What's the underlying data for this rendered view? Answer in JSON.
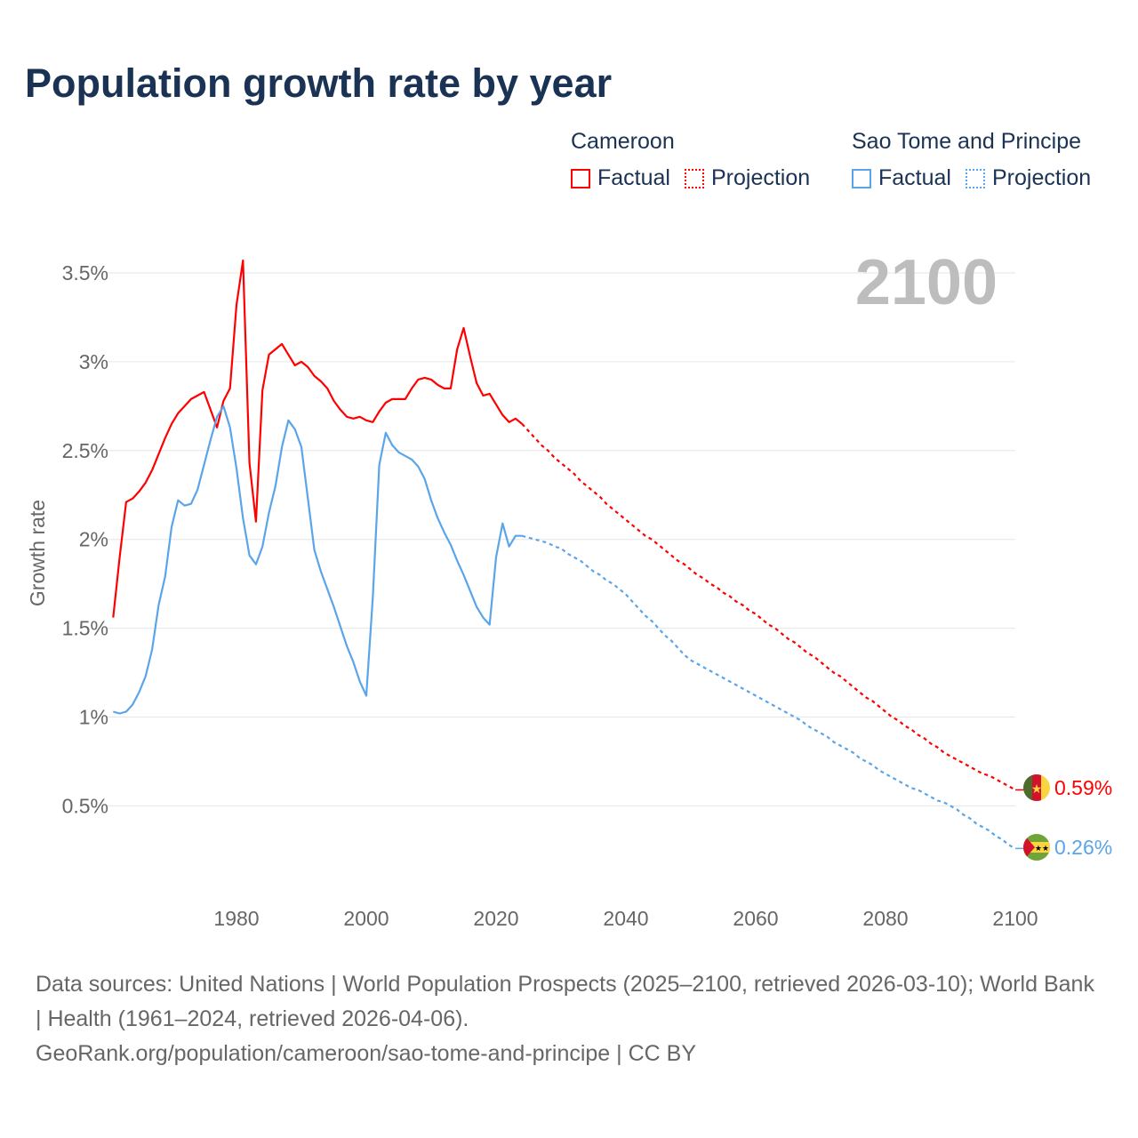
{
  "title": "Population growth rate by year",
  "legend": [
    {
      "country": "Cameroon",
      "factual": "Factual",
      "projection": "Projection",
      "color": "#ff0000"
    },
    {
      "country": "Sao Tome and Principe",
      "factual": "Factual",
      "projection": "Projection",
      "color": "#5aa5ea"
    }
  ],
  "year_display": "2100",
  "footer": {
    "sources": "Data sources: United Nations | World Population Prospects (2025–2100, retrieved 2026-03-10); World Bank | Health (1961–2024, retrieved 2026-04-06).",
    "credit": "GeoRank.org/population/cameroon/sao-tome-and-principe | CC BY"
  },
  "chart_data": {
    "type": "line",
    "title": "Population growth rate by year",
    "xlabel": "",
    "ylabel": "Growth rate",
    "xlim": [
      1961,
      2100
    ],
    "ylim": [
      0.1,
      3.8
    ],
    "xticks": [
      1980,
      2000,
      2020,
      2040,
      2060,
      2080,
      2100
    ],
    "yticks": [
      0.5,
      1,
      1.5,
      2,
      2.5,
      3,
      3.5
    ],
    "ytick_labels": [
      "0.5%",
      "1%",
      "1.5%",
      "2%",
      "2.5%",
      "3%",
      "3.5%"
    ],
    "grid": true,
    "legend_position": "top-right",
    "series": [
      {
        "name": "Cameroon",
        "color": "#ff0000",
        "end_label": "0.59%",
        "factual_start": 1961,
        "factual": [
          1.56,
          1.9,
          2.21,
          2.23,
          2.27,
          2.32,
          2.39,
          2.48,
          2.57,
          2.65,
          2.71,
          2.75,
          2.79,
          2.81,
          2.83,
          2.73,
          2.63,
          2.78,
          2.85,
          3.32,
          3.57,
          2.43,
          2.1,
          2.84,
          3.04,
          3.07,
          3.1,
          3.04,
          2.98,
          3.0,
          2.97,
          2.92,
          2.89,
          2.85,
          2.78,
          2.73,
          2.69,
          2.68,
          2.69,
          2.67,
          2.66,
          2.72,
          2.77,
          2.79,
          2.79,
          2.79,
          2.85,
          2.9,
          2.91,
          2.9,
          2.87,
          2.85,
          2.85,
          3.07,
          3.19,
          3.03,
          2.88,
          2.81,
          2.82,
          2.76,
          2.7,
          2.66,
          2.68,
          2.65
        ],
        "projection_start": 2025,
        "projection": [
          2.61,
          2.57,
          2.53,
          2.5,
          2.46,
          2.43,
          2.4,
          2.37,
          2.33,
          2.3,
          2.27,
          2.24,
          2.2,
          2.17,
          2.14,
          2.11,
          2.08,
          2.05,
          2.02,
          2.0,
          1.97,
          1.94,
          1.91,
          1.88,
          1.86,
          1.83,
          1.8,
          1.78,
          1.75,
          1.73,
          1.7,
          1.68,
          1.65,
          1.63,
          1.6,
          1.58,
          1.55,
          1.52,
          1.5,
          1.47,
          1.44,
          1.42,
          1.39,
          1.36,
          1.34,
          1.31,
          1.28,
          1.25,
          1.23,
          1.2,
          1.17,
          1.14,
          1.11,
          1.09,
          1.06,
          1.03,
          1.0,
          0.98,
          0.95,
          0.93,
          0.9,
          0.88,
          0.85,
          0.83,
          0.8,
          0.78,
          0.76,
          0.74,
          0.72,
          0.7,
          0.68,
          0.67,
          0.65,
          0.63,
          0.61,
          0.59
        ]
      },
      {
        "name": "Sao Tome and Principe",
        "color": "#5aa5ea",
        "end_label": "0.26%",
        "factual_start": 1961,
        "factual": [
          1.03,
          1.02,
          1.03,
          1.07,
          1.14,
          1.23,
          1.38,
          1.63,
          1.79,
          2.07,
          2.22,
          2.19,
          2.2,
          2.28,
          2.42,
          2.56,
          2.69,
          2.75,
          2.63,
          2.4,
          2.12,
          1.91,
          1.86,
          1.96,
          2.15,
          2.3,
          2.52,
          2.67,
          2.62,
          2.52,
          2.23,
          1.94,
          1.82,
          1.72,
          1.62,
          1.51,
          1.4,
          1.31,
          1.2,
          1.12,
          1.67,
          2.42,
          2.6,
          2.53,
          2.49,
          2.47,
          2.45,
          2.41,
          2.34,
          2.22,
          2.12,
          2.04,
          1.97,
          1.88,
          1.8,
          1.71,
          1.62,
          1.56,
          1.52,
          1.9,
          2.09,
          1.96,
          2.02,
          2.02
        ],
        "projection_start": 2025,
        "projection": [
          2.01,
          2.0,
          1.99,
          1.98,
          1.96,
          1.95,
          1.92,
          1.9,
          1.88,
          1.85,
          1.82,
          1.8,
          1.77,
          1.75,
          1.72,
          1.69,
          1.65,
          1.61,
          1.57,
          1.54,
          1.5,
          1.46,
          1.43,
          1.39,
          1.35,
          1.32,
          1.3,
          1.28,
          1.26,
          1.24,
          1.22,
          1.2,
          1.18,
          1.16,
          1.14,
          1.12,
          1.1,
          1.08,
          1.06,
          1.04,
          1.02,
          1.0,
          0.98,
          0.95,
          0.93,
          0.91,
          0.89,
          0.86,
          0.84,
          0.82,
          0.8,
          0.77,
          0.75,
          0.73,
          0.7,
          0.68,
          0.66,
          0.64,
          0.62,
          0.6,
          0.59,
          0.57,
          0.55,
          0.53,
          0.52,
          0.5,
          0.48,
          0.45,
          0.43,
          0.4,
          0.38,
          0.36,
          0.33,
          0.31,
          0.28,
          0.26
        ]
      }
    ]
  }
}
